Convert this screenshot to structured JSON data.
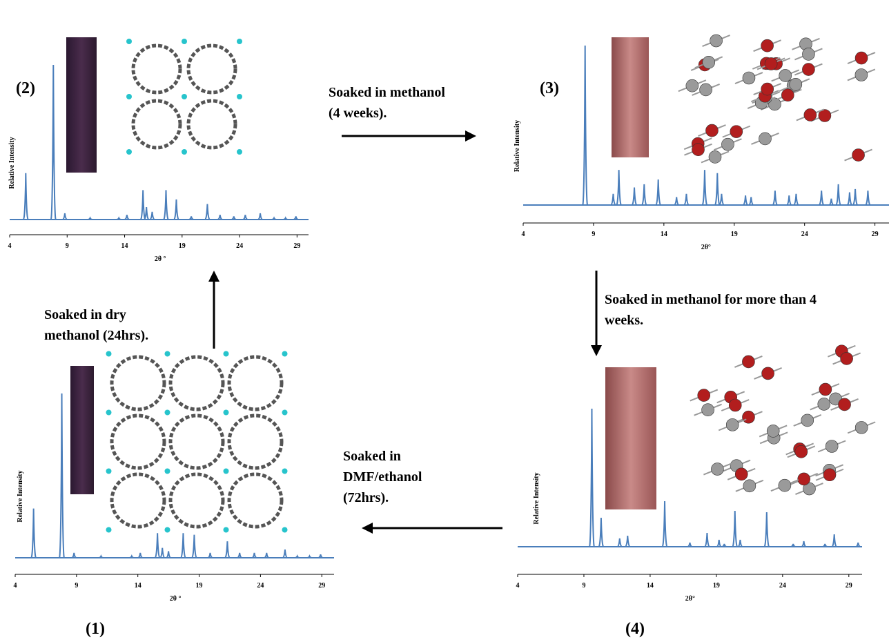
{
  "chart_data": [
    {
      "type": "spectrum",
      "label": "(2)",
      "ylabel": "Relative Intensity",
      "xlabel": "2θ °",
      "color": "#4a7ebb",
      "xlim": [
        4,
        30
      ],
      "ylim": [
        0,
        100
      ],
      "xticks": [
        4,
        9,
        14,
        19,
        24,
        29
      ],
      "x": [
        5.4,
        7.8,
        8.8,
        11,
        13.5,
        14.2,
        15.6,
        15.9,
        16.4,
        17.6,
        18.5,
        19.8,
        21.2,
        22.3,
        23.5,
        24.5,
        25.8,
        27,
        28,
        28.9
      ],
      "values": [
        30,
        100,
        4,
        1,
        1,
        3,
        19,
        8,
        5,
        19,
        13,
        2,
        10,
        3,
        2,
        3,
        4,
        1,
        1,
        2
      ]
    },
    {
      "type": "spectrum",
      "label": "(3)",
      "ylabel": "Relative Intensity",
      "xlabel": "2θ°",
      "color": "#4a7ebb",
      "xlim": [
        4,
        30
      ],
      "ylim": [
        0,
        100
      ],
      "xticks": [
        4,
        9,
        14,
        19,
        24,
        29
      ],
      "x": [
        8.4,
        10.4,
        10.8,
        11.9,
        12.6,
        13.6,
        14.9,
        15.6,
        16.9,
        17.8,
        18.1,
        19.8,
        20.2,
        21.9,
        22.9,
        23.4,
        25.2,
        25.9,
        26.4,
        27.2,
        27.6,
        28.5
      ],
      "values": [
        100,
        7,
        22,
        11,
        13,
        16,
        5,
        7,
        22,
        20,
        7,
        6,
        5,
        9,
        6,
        7,
        9,
        4,
        13,
        8,
        10,
        9
      ]
    },
    {
      "type": "spectrum",
      "label": "(1)",
      "ylabel": "Relative Intensity",
      "xlabel": "2θ °",
      "color": "#4a7ebb",
      "xlim": [
        4,
        30
      ],
      "ylim": [
        0,
        100
      ],
      "xticks": [
        4,
        9,
        14,
        19,
        24,
        29
      ],
      "x": [
        5.5,
        7.8,
        8.8,
        11,
        13.5,
        14.2,
        15.6,
        16,
        16.5,
        17.7,
        18.6,
        19.9,
        21.3,
        22.3,
        23.5,
        24.5,
        26,
        27,
        28,
        28.9
      ],
      "values": [
        30,
        100,
        3,
        1,
        1,
        3,
        15,
        6,
        4,
        15,
        14,
        3,
        10,
        3,
        3,
        3,
        5,
        1,
        1,
        2
      ]
    },
    {
      "type": "spectrum",
      "label": "(4)",
      "ylabel": "Relative Intensity",
      "xlabel": "2θ°",
      "color": "#4a7ebb",
      "xlim": [
        4,
        30
      ],
      "ylim": [
        0,
        100
      ],
      "xticks": [
        4,
        9,
        14,
        19,
        24,
        29
      ],
      "x": [
        9.6,
        10.3,
        11.7,
        12.3,
        15.1,
        17,
        18.3,
        19.2,
        19.6,
        20.4,
        20.8,
        22.8,
        24.8,
        25.6,
        27.2,
        27.9,
        29.7
      ],
      "values": [
        100,
        21,
        6,
        8,
        33,
        3,
        10,
        5,
        2,
        26,
        5,
        25,
        2,
        4,
        2,
        9,
        3
      ]
    }
  ],
  "steps": [
    {
      "lines": [
        "Soaked in methanol",
        "(4 weeks)."
      ]
    },
    {
      "lines": [
        "Soaked in methanol for more than 4",
        "weeks."
      ]
    },
    {
      "lines": [
        "Soaked in",
        "DMF/ethanol",
        "(72hrs)."
      ]
    },
    {
      "lines": [
        "Soaked in dry",
        "methanol (24hrs)."
      ]
    }
  ]
}
